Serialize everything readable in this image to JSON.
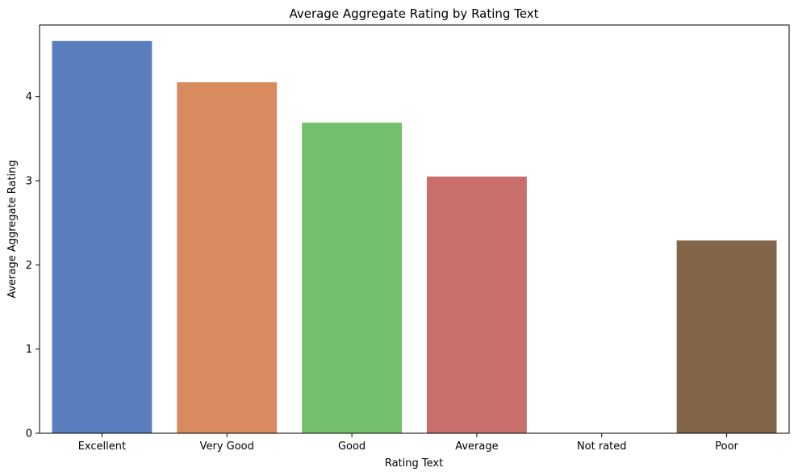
{
  "chart_data": {
    "type": "bar",
    "title": "Average Aggregate Rating by Rating Text",
    "xlabel": "Rating Text",
    "ylabel": "Average Aggregate Rating",
    "categories": [
      "Excellent",
      "Very Good",
      "Good",
      "Average",
      "Not rated",
      "Poor"
    ],
    "values": [
      4.66,
      4.17,
      3.69,
      3.05,
      0,
      2.29
    ],
    "colors": [
      "#5b7ec1",
      "#d98b5f",
      "#75c06f",
      "#c86e6d",
      "#ffffff",
      "#83654a"
    ],
    "ylim": [
      0,
      4.85
    ],
    "yticks": [
      0,
      1,
      2,
      3,
      4
    ],
    "grid": false,
    "legend": "none"
  }
}
